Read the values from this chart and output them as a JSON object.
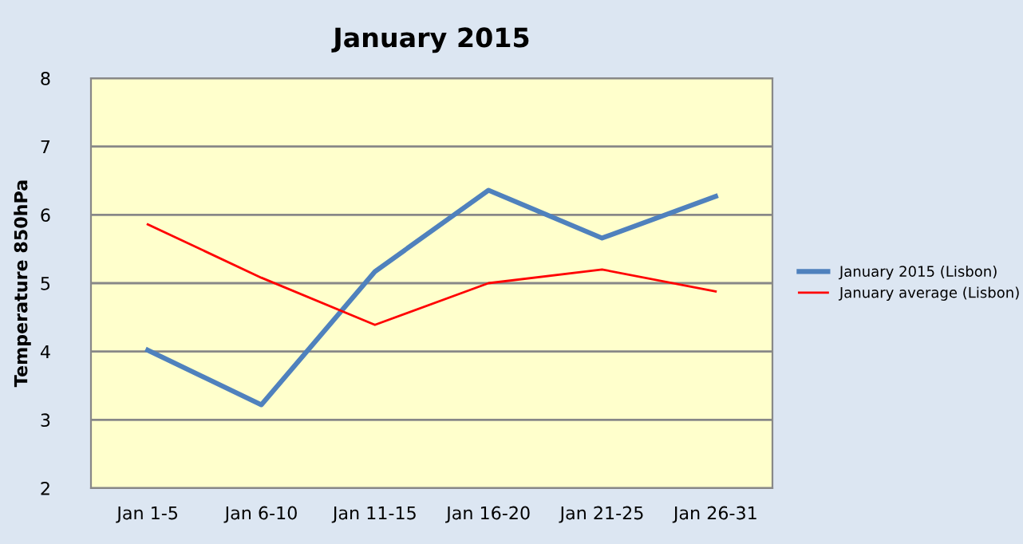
{
  "chart_data": {
    "type": "line",
    "title": "January 2015",
    "ylabel": "Temperature 850hPa",
    "categories": [
      "Jan 1-5",
      "Jan 6-10",
      "Jan 11-15",
      "Jan 16-20",
      "Jan 21-25",
      "Jan 26-31"
    ],
    "series": [
      {
        "name": "January 2015 (Lisbon)",
        "color": "#4f81bd",
        "values": [
          4.02,
          3.22,
          5.17,
          6.36,
          5.66,
          6.27
        ]
      },
      {
        "name": "January average (Lisbon)",
        "color": "#ff0000",
        "values": [
          5.86,
          5.08,
          4.39,
          5.0,
          5.2,
          4.88
        ]
      }
    ],
    "ylim": [
      2,
      8
    ],
    "yticks": [
      2,
      3,
      4,
      5,
      6,
      7,
      8
    ],
    "grid": "y",
    "legend": "right",
    "marker": "none",
    "line_style": "solid"
  }
}
